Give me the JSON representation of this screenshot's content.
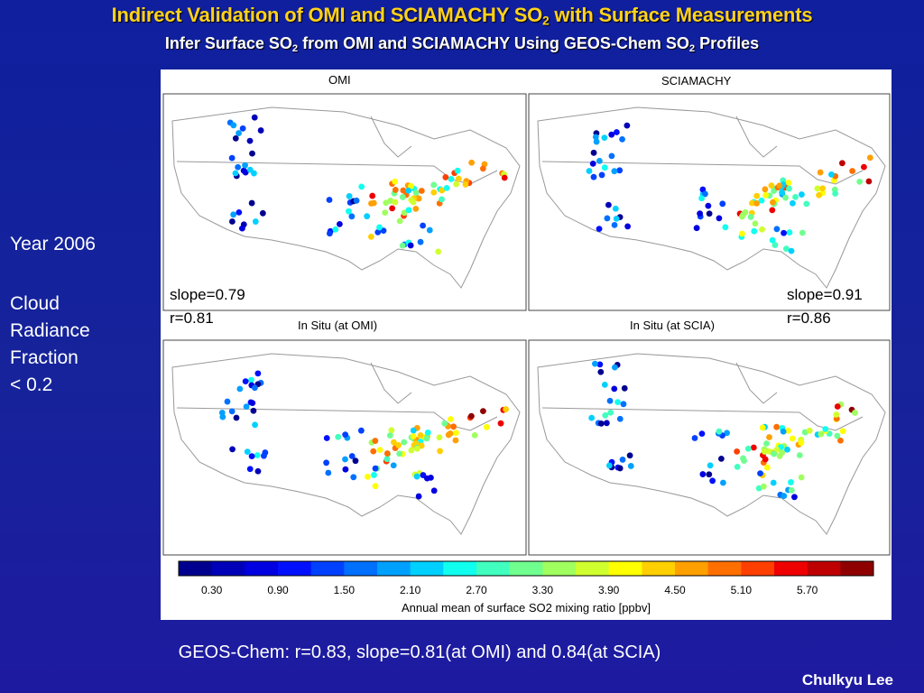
{
  "title": {
    "prefix": "Indirect Validation of OMI and SCIAMACHY SO",
    "sub": "2",
    "suffix": " with Surface Measurements"
  },
  "subtitle": {
    "part1": "Infer Surface SO",
    "sub1": "2",
    "part2": " from OMI and SCIAMACHY Using GEOS-Chem SO",
    "sub2": "2",
    "part3": " Profiles"
  },
  "side": {
    "year": "Year 2006",
    "line1": "Cloud",
    "line2": "Radiance",
    "line3": "Fraction",
    "line4": "< 0.2"
  },
  "panels": {
    "omi_title": "OMI",
    "scia_title": "SCIAMACHY",
    "insitu_omi": "In Situ (at OMI)",
    "insitu_scia": "In Situ (at SCIA)"
  },
  "stats": {
    "omi_slope": "slope=0.79",
    "omi_r": "r=0.81",
    "scia_slope": "slope=0.91",
    "scia_r": "r=0.86"
  },
  "colorbar": {
    "ticks": [
      "0.30",
      "0.90",
      "1.50",
      "2.10",
      "2.70",
      "3.30",
      "3.90",
      "4.50",
      "5.10",
      "5.70"
    ],
    "title": "Annual mean of surface SO2 mixing ratio [ppbv]",
    "colors": [
      "#00008f",
      "#0000b8",
      "#0000e0",
      "#0010ff",
      "#0040ff",
      "#0070ff",
      "#00a0ff",
      "#00d0ff",
      "#10ffef",
      "#40ffbf",
      "#70ff8f",
      "#a0ff5f",
      "#d0ff2f",
      "#ffff00",
      "#ffcf00",
      "#ff9f00",
      "#ff6f00",
      "#ff3f00",
      "#ef0000",
      "#bf0000",
      "#8f0000"
    ]
  },
  "footer": "GEOS-Chem: r=0.83, slope=0.81(at OMI) and 0.84(at SCIA)",
  "author": "Chulkyu Lee"
}
